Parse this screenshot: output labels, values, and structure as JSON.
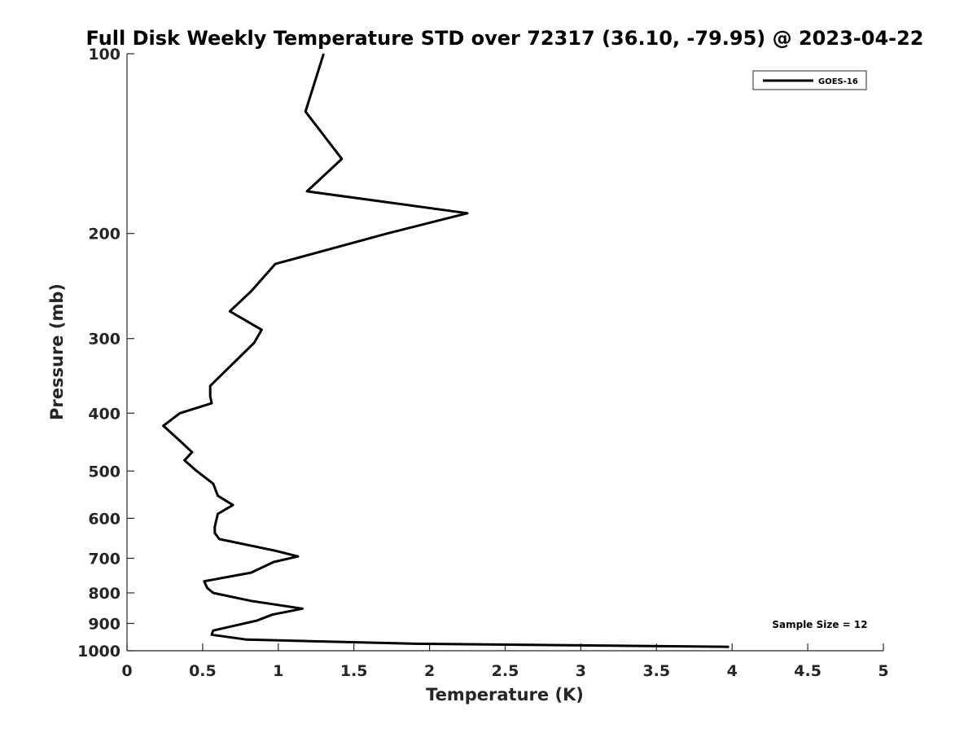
{
  "chart_data": {
    "type": "line",
    "title": "Full Disk Weekly Temperature STD over 72317 (36.10, -79.95) @ 2023-04-22",
    "xlabel": "Temperature (K)",
    "ylabel": "Pressure (mb)",
    "xlim": [
      0,
      5
    ],
    "ylim": [
      100,
      1000
    ],
    "y_scale": "log",
    "y_reversed": true,
    "x_ticks": [
      "0",
      "0.5",
      "1",
      "1.5",
      "2",
      "2.5",
      "3",
      "3.5",
      "4",
      "4.5",
      "5"
    ],
    "y_ticks": [
      "100",
      "200",
      "300",
      "400",
      "500",
      "600",
      "700",
      "800",
      "900",
      "1000"
    ],
    "grid": false,
    "legend_position": "top-right",
    "annotation": "Sample Size = 12",
    "series": [
      {
        "name": "GOES-16",
        "color": "#000000",
        "points": [
          [
            1.3,
            100
          ],
          [
            1.18,
            125
          ],
          [
            1.42,
            150
          ],
          [
            1.19,
            170
          ],
          [
            2.25,
            185
          ],
          [
            1.72,
            200
          ],
          [
            0.98,
            225
          ],
          [
            0.82,
            250
          ],
          [
            0.68,
            270
          ],
          [
            0.89,
            290
          ],
          [
            0.84,
            305
          ],
          [
            0.65,
            340
          ],
          [
            0.55,
            360
          ],
          [
            0.55,
            375
          ],
          [
            0.56,
            385
          ],
          [
            0.35,
            400
          ],
          [
            0.24,
            420
          ],
          [
            0.35,
            445
          ],
          [
            0.43,
            465
          ],
          [
            0.38,
            480
          ],
          [
            0.46,
            500
          ],
          [
            0.57,
            525
          ],
          [
            0.6,
            550
          ],
          [
            0.7,
            570
          ],
          [
            0.6,
            590
          ],
          [
            0.58,
            620
          ],
          [
            0.58,
            635
          ],
          [
            0.61,
            650
          ],
          [
            0.98,
            680
          ],
          [
            1.13,
            695
          ],
          [
            0.97,
            710
          ],
          [
            0.82,
            740
          ],
          [
            0.51,
            765
          ],
          [
            0.53,
            785
          ],
          [
            0.57,
            800
          ],
          [
            0.82,
            825
          ],
          [
            1.16,
            850
          ],
          [
            0.96,
            870
          ],
          [
            0.86,
            890
          ],
          [
            0.57,
            925
          ],
          [
            0.56,
            940
          ],
          [
            0.79,
            958
          ],
          [
            1.32,
            965
          ],
          [
            1.88,
            973
          ],
          [
            3.98,
            985
          ]
        ]
      }
    ]
  }
}
